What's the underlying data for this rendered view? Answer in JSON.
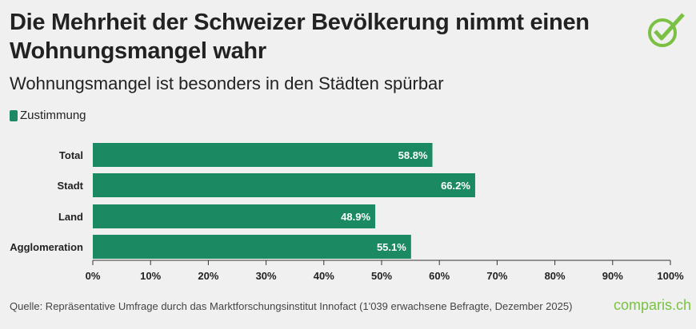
{
  "title": "Die Mehrheit der Schweizer Bevölkerung nimmt einen Wohnungsmangel wahr",
  "subtitle": "Wohnungsmangel ist besonders in den Städten spürbar",
  "source": "Quelle: Repräsentative Umfrage durch das Marktforschungsinstitut Innofact (1'039 erwachsene Befragte, Dezember 2025)",
  "brand": "comparis.ch",
  "colors": {
    "bar": "#1b8a63",
    "logo": "#7ac143"
  },
  "chart_data": {
    "type": "bar",
    "orientation": "horizontal",
    "categories": [
      "Total",
      "Stadt",
      "Land",
      "Agglomeration"
    ],
    "series": [
      {
        "name": "Zustimmung",
        "values": [
          58.8,
          66.2,
          48.9,
          55.1
        ]
      }
    ],
    "data_labels": [
      "58.8%",
      "66.2%",
      "48.9%",
      "55.1%"
    ],
    "xlim": [
      0,
      100
    ],
    "xticks": [
      "0%",
      "10%",
      "20%",
      "30%",
      "40%",
      "50%",
      "60%",
      "70%",
      "80%",
      "90%",
      "100%"
    ],
    "grid": false,
    "legend": "top-left"
  }
}
